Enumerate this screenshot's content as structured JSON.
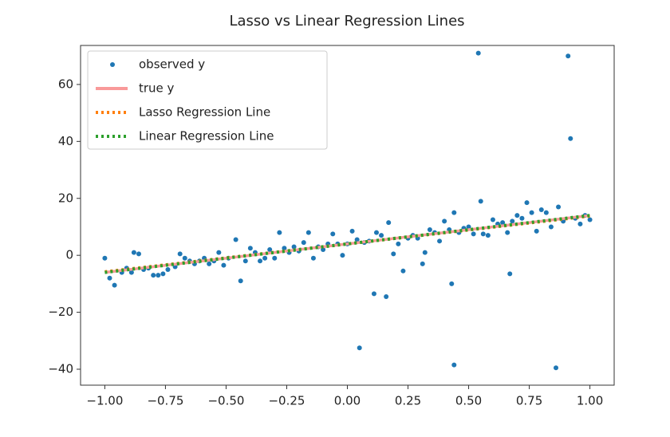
{
  "chart_data": {
    "type": "scatter-line",
    "title": "Lasso vs Linear Regression Lines",
    "xlim": [
      -1.1,
      1.1
    ],
    "ylim": [
      -45.6,
      73.7
    ],
    "xticks": [
      {
        "value": -1,
        "label": "−1.00"
      },
      {
        "value": -0.75,
        "label": "−0.75"
      },
      {
        "value": -0.5,
        "label": "−0.50"
      },
      {
        "value": -0.25,
        "label": "−0.25"
      },
      {
        "value": 0,
        "label": "0.00"
      },
      {
        "value": 0.25,
        "label": "0.25"
      },
      {
        "value": 0.5,
        "label": "0.50"
      },
      {
        "value": 0.75,
        "label": "0.75"
      },
      {
        "value": 1,
        "label": "1.00"
      }
    ],
    "yticks": [
      {
        "value": -40,
        "label": "−40"
      },
      {
        "value": -20,
        "label": "−20"
      },
      0,
      20,
      40,
      60
    ],
    "legend": "upper left",
    "series": [
      {
        "name": "observed y",
        "kind": "scatter",
        "color": "#1f77b4",
        "x": [
          -1.0,
          -0.98,
          -0.96,
          -0.93,
          -0.91,
          -0.89,
          -0.88,
          -0.86,
          -0.84,
          -0.82,
          -0.8,
          -0.78,
          -0.76,
          -0.74,
          -0.71,
          -0.69,
          -0.67,
          -0.65,
          -0.63,
          -0.61,
          -0.59,
          -0.57,
          -0.55,
          -0.53,
          -0.51,
          -0.49,
          -0.46,
          -0.44,
          -0.42,
          -0.4,
          -0.38,
          -0.36,
          -0.34,
          -0.32,
          -0.3,
          -0.28,
          -0.26,
          -0.24,
          -0.22,
          -0.2,
          -0.18,
          -0.16,
          -0.14,
          -0.12,
          -0.1,
          -0.08,
          -0.06,
          -0.04,
          -0.02,
          0.0,
          0.02,
          0.04,
          0.05,
          0.07,
          0.09,
          0.11,
          0.12,
          0.14,
          0.16,
          0.17,
          0.19,
          0.21,
          0.23,
          0.25,
          0.27,
          0.29,
          0.31,
          0.32,
          0.34,
          0.36,
          0.38,
          0.4,
          0.42,
          0.43,
          0.44,
          0.44,
          0.46,
          0.48,
          0.5,
          0.52,
          0.54,
          0.55,
          0.56,
          0.58,
          0.6,
          0.62,
          0.64,
          0.66,
          0.67,
          0.68,
          0.7,
          0.72,
          0.74,
          0.76,
          0.78,
          0.8,
          0.82,
          0.84,
          0.86,
          0.87,
          0.89,
          0.91,
          0.92,
          0.94,
          0.96,
          0.98,
          1.0
        ],
        "y": [
          -1,
          -8,
          -10.5,
          -6,
          -4.5,
          -6,
          1,
          0.5,
          -5,
          -4.5,
          -7,
          -7,
          -6.5,
          -5,
          -4,
          0.5,
          -1,
          -2,
          -3,
          -2,
          -1,
          -3,
          -2,
          1,
          -3.5,
          -1,
          5.5,
          -9,
          -2,
          2.5,
          1,
          -2,
          -1,
          2,
          -1,
          8,
          2.5,
          1,
          3,
          1.5,
          4.5,
          8,
          -1,
          3,
          2,
          4,
          7.5,
          4,
          0,
          4,
          8.5,
          5.5,
          -32.5,
          4.5,
          5,
          -13.5,
          8,
          7,
          -14.5,
          11.5,
          0.5,
          4,
          -5.5,
          6,
          7,
          6,
          -3,
          1,
          9,
          8,
          5,
          12,
          9,
          -10,
          -38.5,
          15,
          8,
          9.5,
          10,
          7.5,
          71,
          19,
          7.5,
          7,
          12.5,
          11,
          11.5,
          8,
          -6.5,
          12,
          14,
          13,
          18.5,
          15,
          8.5,
          16,
          15,
          10,
          -39.5,
          17,
          12,
          70,
          41,
          13,
          11,
          14,
          12.5
        ]
      },
      {
        "name": "true y",
        "kind": "line",
        "color": "#f99a9a",
        "x": [
          -1,
          1
        ],
        "y": [
          -6,
          14
        ]
      },
      {
        "name": "Lasso Regression Line",
        "kind": "dotted",
        "color": "#ff7f0e",
        "x": [
          -1,
          1
        ],
        "y": [
          -5.8,
          13.8
        ]
      },
      {
        "name": "Linear Regression Line",
        "kind": "dotted",
        "color": "#2ca02c",
        "x": [
          -1,
          1
        ],
        "y": [
          -6,
          14
        ]
      }
    ]
  }
}
